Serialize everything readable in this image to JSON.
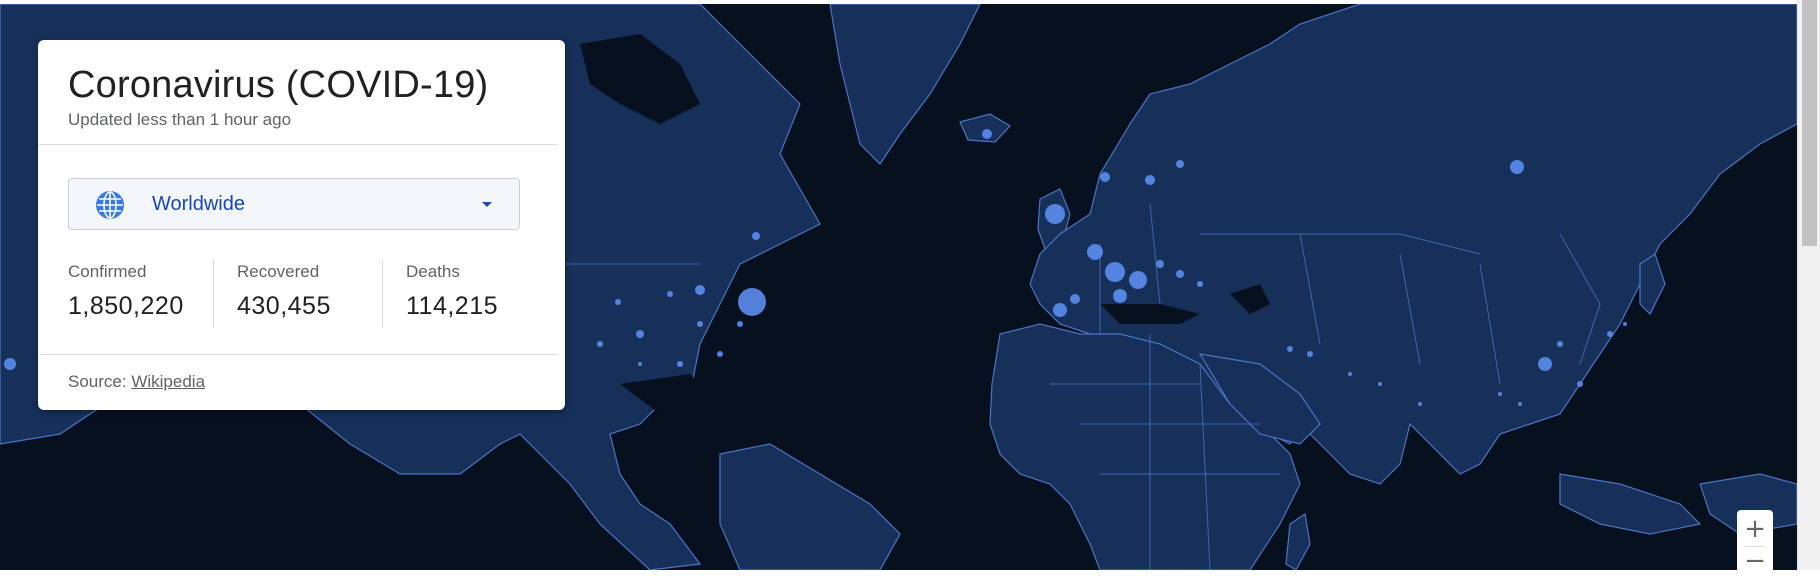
{
  "card": {
    "title": "Coronavirus (COVID-19)",
    "updated": "Updated less than 1 hour ago",
    "region_selector": {
      "selected": "Worldwide",
      "icon": "globe-icon"
    },
    "stats": [
      {
        "label": "Confirmed",
        "value": "1,850,220"
      },
      {
        "label": "Recovered",
        "value": "430,455"
      },
      {
        "label": "Deaths",
        "value": "114,215"
      }
    ],
    "source_label": "Source:",
    "source_link": "Wikipedia"
  },
  "map": {
    "background_color": "#06101f",
    "land_color": "#163059",
    "border_color": "#4a74c4",
    "marker_color": "#5b8def"
  },
  "zoom_controls": {
    "zoom_in": "+",
    "zoom_out": "−"
  }
}
